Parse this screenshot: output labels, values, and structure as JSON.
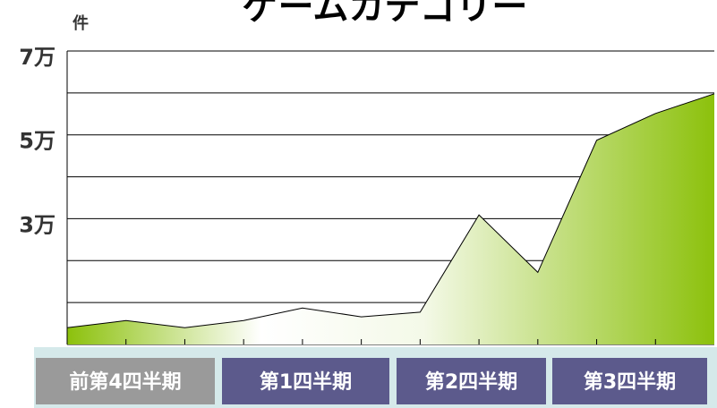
{
  "chart_data": {
    "type": "area",
    "title": "ゲームカテゴリー",
    "y_unit": "件",
    "categories": [
      null,
      null,
      null,
      null,
      null,
      null,
      null,
      null,
      null,
      null,
      null,
      null
    ],
    "values": [
      4000,
      5700,
      4000,
      5700,
      8700,
      6600,
      7700,
      30900,
      17200,
      48700,
      55100,
      59800
    ],
    "ylim": [
      0,
      70000
    ],
    "yticks": [
      {
        "value": 0,
        "label": null
      },
      {
        "value": 10000,
        "label": null
      },
      {
        "value": 20000,
        "label": null
      },
      {
        "value": 30000,
        "label": "3万"
      },
      {
        "value": 40000,
        "label": null
      },
      {
        "value": 50000,
        "label": "5万"
      },
      {
        "value": 60000,
        "label": null
      },
      {
        "value": 70000,
        "label": "7万"
      }
    ],
    "grid": true,
    "color": "#8cc10c",
    "line_color": "#000000",
    "periods": [
      {
        "label": "前第4四半期",
        "color": "#9a9a9a"
      },
      {
        "label": "第1四半期",
        "color": "#5c5a8c"
      },
      {
        "label": "第2四半期",
        "color": "#5c5a8c"
      },
      {
        "label": "第3四半期",
        "color": "#5c5a8c"
      }
    ]
  }
}
